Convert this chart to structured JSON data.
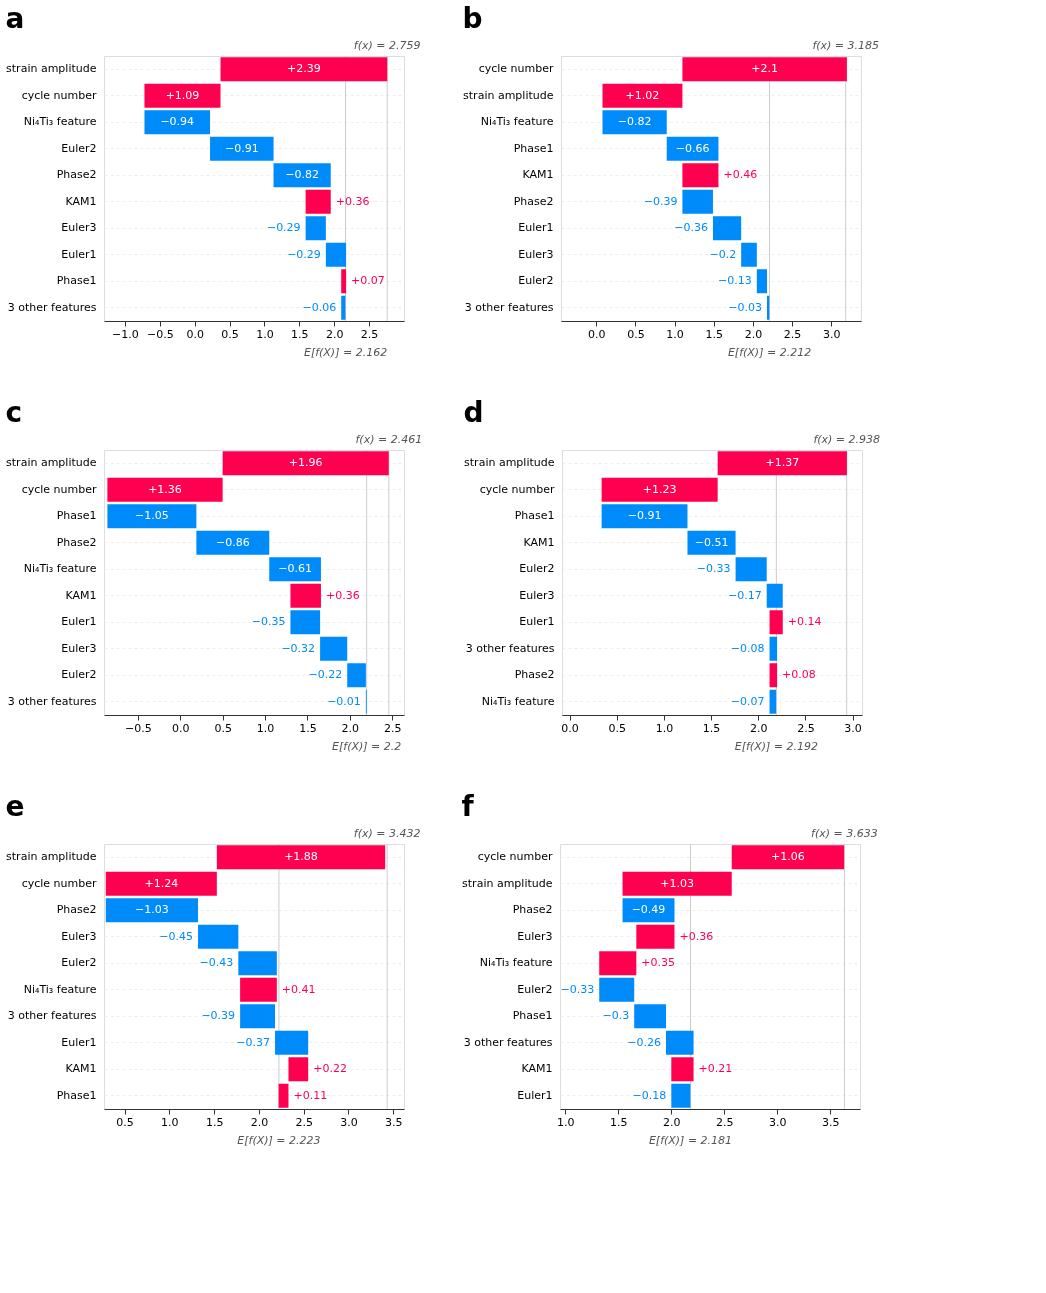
{
  "chart_data": [
    {
      "type": "bar",
      "orientation": "horizontal",
      "title": "a",
      "categories": [
        "strain amplitude",
        "cycle number",
        "Ni₄Ti₃ feature",
        "Euler2",
        "Phase2",
        "KAM1",
        "Euler3",
        "Euler1",
        "Phase1",
        "3 other features"
      ],
      "values": [
        2.39,
        1.09,
        -0.94,
        -0.91,
        -0.82,
        0.36,
        -0.29,
        -0.29,
        0.07,
        -0.06
      ],
      "base": [
        0.37,
        -0.72,
        0.22,
        1.13,
        1.95,
        1.59,
        1.88,
        2.17,
        2.1,
        2.16
      ],
      "colors": [
        "#ff0051",
        "#ff0051",
        "#008bfb",
        "#008bfb",
        "#008bfb",
        "#ff0051",
        "#008bfb",
        "#008bfb",
        "#ff0051",
        "#008bfb"
      ],
      "value_labels": [
        "+2.39",
        "+1.09",
        "−0.94",
        "−0.91",
        "−0.82",
        "+0.36",
        "−0.29",
        "−0.29",
        "+0.07",
        "−0.06"
      ],
      "xlim": [
        -1.3,
        3.0
      ],
      "xticks": [
        {
          "value": -1,
          "label": "−1.0"
        },
        -0.5,
        {
          "value": 0,
          "label": "0.0"
        },
        0.5,
        {
          "value": 1,
          "label": "1.0"
        },
        1.5,
        {
          "value": 2,
          "label": "2.0"
        },
        2.5
      ],
      "grid": "y",
      "ref_lines": [
        {
          "axis": "x",
          "value": 2.759,
          "label": "f(x) = 2.759",
          "color": "#cccccc"
        },
        {
          "axis": "x",
          "value": 2.162,
          "label": "E[f(X)] = 2.162",
          "color": "#cccccc"
        }
      ]
    },
    {
      "type": "bar",
      "orientation": "horizontal",
      "title": "b",
      "categories": [
        "cycle number",
        "strain amplitude",
        "Ni₄Ti₃ feature",
        "Phase1",
        "KAM1",
        "Phase2",
        "Euler1",
        "Euler3",
        "Euler2",
        "3 other features"
      ],
      "values": [
        2.1,
        1.02,
        -0.82,
        -0.66,
        0.46,
        -0.39,
        -0.36,
        -0.2,
        -0.13,
        -0.03
      ],
      "base": [
        1.1,
        0.08,
        0.9,
        1.56,
        1.1,
        1.49,
        1.85,
        2.05,
        2.18,
        2.21
      ],
      "colors": [
        "#ff0051",
        "#ff0051",
        "#008bfb",
        "#008bfb",
        "#ff0051",
        "#008bfb",
        "#008bfb",
        "#008bfb",
        "#008bfb",
        "#008bfb"
      ],
      "value_labels": [
        "+2.1",
        "+1.02",
        "−0.82",
        "−0.66",
        "+0.46",
        "−0.39",
        "−0.36",
        "−0.2",
        "−0.13",
        "−0.03"
      ],
      "xlim": [
        -0.45,
        3.38
      ],
      "xticks": [
        {
          "value": 0,
          "label": "0.0"
        },
        0.5,
        {
          "value": 1,
          "label": "1.0"
        },
        1.5,
        {
          "value": 2,
          "label": "2.0"
        },
        2.5,
        {
          "value": 3,
          "label": "3.0"
        }
      ],
      "grid": "y",
      "ref_lines": [
        {
          "axis": "x",
          "value": 3.185,
          "label": "f(x) = 3.185",
          "color": "#cccccc"
        },
        {
          "axis": "x",
          "value": 2.212,
          "label": "E[f(X)] = 2.212",
          "color": "#cccccc"
        }
      ]
    },
    {
      "type": "bar",
      "orientation": "horizontal",
      "title": "c",
      "categories": [
        "strain amplitude",
        "cycle number",
        "Phase1",
        "Phase2",
        "Ni₄Ti₃ feature",
        "KAM1",
        "Euler1",
        "Euler3",
        "Euler2",
        "3 other features"
      ],
      "values": [
        1.96,
        1.36,
        -1.05,
        -0.86,
        -0.61,
        0.36,
        -0.35,
        -0.32,
        -0.22,
        -0.01
      ],
      "base": [
        0.5,
        -0.86,
        0.19,
        1.05,
        1.66,
        1.3,
        1.65,
        1.97,
        2.19,
        2.2
      ],
      "colors": [
        "#ff0051",
        "#ff0051",
        "#008bfb",
        "#008bfb",
        "#008bfb",
        "#ff0051",
        "#008bfb",
        "#008bfb",
        "#008bfb",
        "#008bfb"
      ],
      "value_labels": [
        "+1.96",
        "+1.36",
        "−1.05",
        "−0.86",
        "−0.61",
        "+0.36",
        "−0.35",
        "−0.32",
        "−0.22",
        "−0.01"
      ],
      "xlim": [
        -0.9,
        2.64
      ],
      "xticks": [
        -0.5,
        {
          "value": 0,
          "label": "0.0"
        },
        0.5,
        {
          "value": 1,
          "label": "1.0"
        },
        1.5,
        {
          "value": 2,
          "label": "2.0"
        },
        2.5
      ],
      "grid": "y",
      "ref_lines": [
        {
          "axis": "x",
          "value": 2.461,
          "label": "f(x) = 2.461",
          "color": "#cccccc"
        },
        {
          "axis": "x",
          "value": 2.2,
          "label": "E[f(X)] = 2.2",
          "color": "#cccccc"
        }
      ]
    },
    {
      "type": "bar",
      "orientation": "horizontal",
      "title": "d",
      "categories": [
        "strain amplitude",
        "cycle number",
        "Phase1",
        "KAM1",
        "Euler2",
        "Euler3",
        "Euler1",
        "3 other features",
        "Phase2",
        "Ni₄Ti₃ feature"
      ],
      "values": [
        1.37,
        1.23,
        -0.91,
        -0.51,
        -0.33,
        -0.17,
        0.14,
        -0.08,
        0.08,
        -0.07
      ],
      "base": [
        1.57,
        0.34,
        1.25,
        1.76,
        2.09,
        2.26,
        2.12,
        2.2,
        2.12,
        2.19
      ],
      "colors": [
        "#ff0051",
        "#ff0051",
        "#008bfb",
        "#008bfb",
        "#008bfb",
        "#008bfb",
        "#ff0051",
        "#008bfb",
        "#ff0051",
        "#008bfb"
      ],
      "value_labels": [
        "+1.37",
        "+1.23",
        "−0.91",
        "−0.51",
        "−0.33",
        "−0.17",
        "+0.14",
        "−0.08",
        "+0.08",
        "−0.07"
      ],
      "xlim": [
        -0.08,
        3.1
      ],
      "xticks": [
        {
          "value": 0,
          "label": "0.0"
        },
        0.5,
        {
          "value": 1,
          "label": "1.0"
        },
        1.5,
        {
          "value": 2,
          "label": "2.0"
        },
        2.5,
        {
          "value": 3,
          "label": "3.0"
        }
      ],
      "grid": "y",
      "ref_lines": [
        {
          "axis": "x",
          "value": 2.938,
          "label": "f(x) = 2.938",
          "color": "#cccccc"
        },
        {
          "axis": "x",
          "value": 2.192,
          "label": "E[f(X)] = 2.192",
          "color": "#cccccc"
        }
      ]
    },
    {
      "type": "bar",
      "orientation": "horizontal",
      "title": "e",
      "categories": [
        "strain amplitude",
        "cycle number",
        "Phase2",
        "Euler3",
        "Euler2",
        "Ni₄Ti₃ feature",
        "3 other features",
        "Euler1",
        "KAM1",
        "Phase1"
      ],
      "values": [
        1.88,
        1.24,
        -1.03,
        -0.45,
        -0.43,
        0.41,
        -0.39,
        -0.37,
        0.22,
        0.11
      ],
      "base": [
        1.53,
        0.29,
        1.32,
        1.77,
        2.2,
        1.79,
        2.18,
        2.55,
        2.33,
        2.22
      ],
      "colors": [
        "#ff0051",
        "#ff0051",
        "#008bfb",
        "#008bfb",
        "#008bfb",
        "#ff0051",
        "#008bfb",
        "#008bfb",
        "#ff0051",
        "#ff0051"
      ],
      "value_labels": [
        "+1.88",
        "+1.24",
        "−1.03",
        "−0.45",
        "−0.43",
        "+0.41",
        "−0.39",
        "−0.37",
        "+0.22",
        "+0.11"
      ],
      "xlim": [
        0.27,
        3.62
      ],
      "xticks": [
        0.5,
        {
          "value": 1,
          "label": "1.0"
        },
        1.5,
        {
          "value": 2,
          "label": "2.0"
        },
        2.5,
        {
          "value": 3,
          "label": "3.0"
        },
        3.5
      ],
      "grid": "y",
      "ref_lines": [
        {
          "axis": "x",
          "value": 3.432,
          "label": "f(x) = 3.432",
          "color": "#cccccc"
        },
        {
          "axis": "x",
          "value": 2.223,
          "label": "E[f(X)] = 2.223",
          "color": "#cccccc"
        }
      ]
    },
    {
      "type": "bar",
      "orientation": "horizontal",
      "title": "f",
      "categories": [
        "cycle number",
        "strain amplitude",
        "Phase2",
        "Euler3",
        "Ni₄Ti₃ feature",
        "Euler2",
        "Phase1",
        "3 other features",
        "KAM1",
        "Euler1"
      ],
      "values": [
        1.06,
        1.03,
        -0.49,
        0.36,
        0.35,
        -0.33,
        -0.3,
        -0.26,
        0.21,
        -0.18
      ],
      "base": [
        2.57,
        1.54,
        2.03,
        1.67,
        1.32,
        1.65,
        1.95,
        2.21,
        2.0,
        2.18
      ],
      "colors": [
        "#ff0051",
        "#ff0051",
        "#008bfb",
        "#ff0051",
        "#ff0051",
        "#008bfb",
        "#008bfb",
        "#008bfb",
        "#ff0051",
        "#008bfb"
      ],
      "value_labels": [
        "+1.06",
        "+1.03",
        "−0.49",
        "+0.36",
        "+0.35",
        "−0.33",
        "−0.3",
        "−0.26",
        "+0.21",
        "−0.18"
      ],
      "xlim": [
        0.95,
        3.78
      ],
      "xticks": [
        {
          "value": 1,
          "label": "1.0"
        },
        1.5,
        {
          "value": 2,
          "label": "2.0"
        },
        2.5,
        {
          "value": 3,
          "label": "3.0"
        },
        3.5
      ],
      "grid": "y",
      "ref_lines": [
        {
          "axis": "x",
          "value": 3.633,
          "label": "f(x) = 3.633",
          "color": "#cccccc"
        },
        {
          "axis": "x",
          "value": 2.181,
          "label": "E[f(X)] = 2.181",
          "color": "#cccccc"
        }
      ]
    }
  ]
}
